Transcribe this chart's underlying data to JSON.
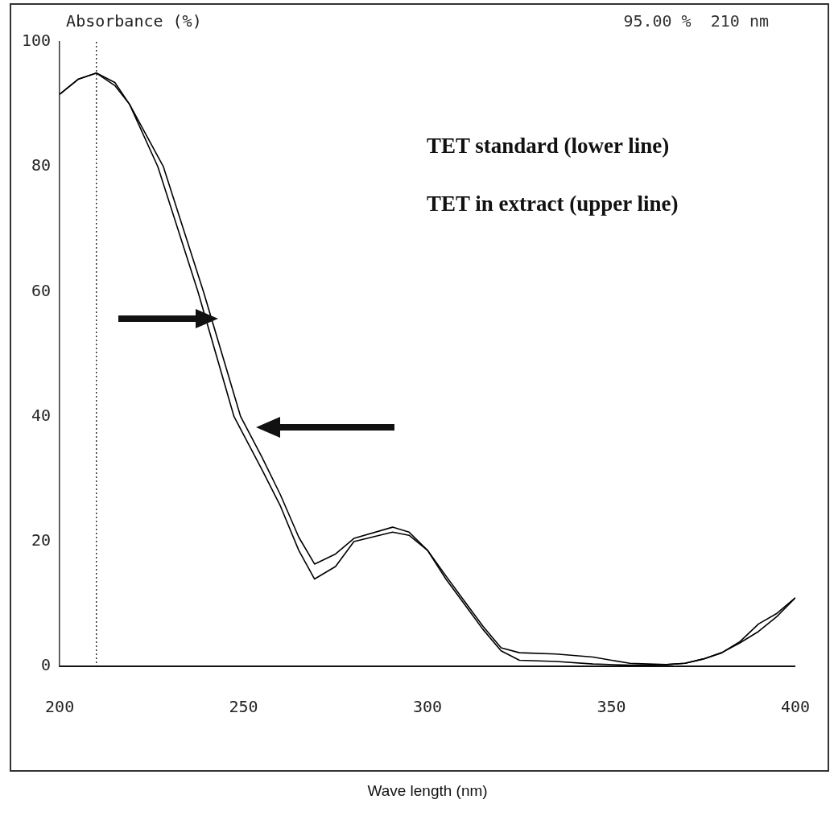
{
  "chart_data": {
    "type": "line",
    "ylabel": "Absorbance (%)",
    "xlabel": "Wave length (nm)",
    "annotations": [
      "95.00 %  210 nm",
      "TET standard (lower line)",
      "TET in extract (upper line)"
    ],
    "series": [
      {
        "color": "#000000",
        "x": [
          200,
          205,
          210,
          215,
          219,
          226.7,
          237.6,
          247.4,
          255,
          260,
          265,
          269.3,
          275,
          280,
          290.5,
          295,
          300,
          305,
          310,
          315,
          320,
          325,
          335,
          345,
          355,
          365,
          370,
          375,
          380,
          385,
          390,
          395,
          400
        ],
        "values": [
          91.6,
          94,
          95,
          93,
          90,
          80,
          60,
          40,
          31.5,
          25.7,
          18.6,
          14,
          16,
          20,
          21.5,
          21,
          18.6,
          14,
          10,
          6,
          2.5,
          1,
          0.8,
          0.4,
          0.2,
          0.3,
          0.5,
          1.2,
          2.2,
          3.8,
          5.6,
          8,
          11
        ]
      },
      {
        "color": "#000000",
        "x": [
          200,
          205,
          210,
          215,
          219,
          228.2,
          239.1,
          249.2,
          255,
          260,
          265,
          269.3,
          275,
          280,
          290.5,
          295,
          300,
          305,
          310,
          315,
          320,
          325,
          335,
          345,
          355,
          365,
          370,
          375,
          380,
          385,
          390,
          395,
          400
        ],
        "values": [
          91.6,
          94,
          95,
          93.5,
          90,
          80,
          60,
          40,
          33.5,
          27.5,
          20.7,
          16.4,
          18,
          20.5,
          22.3,
          21.5,
          18.6,
          14.5,
          10.5,
          6.5,
          3,
          2.2,
          2,
          1.5,
          0.5,
          0.3,
          0.5,
          1.2,
          2.2,
          4,
          6.8,
          8.5,
          11
        ]
      }
    ],
    "xlim": [
      200,
      400
    ],
    "xticks": [
      200,
      250,
      300,
      350,
      400
    ],
    "ylim": [
      0,
      100
    ],
    "yticks": [
      0,
      20,
      40,
      60,
      80,
      100
    ],
    "ref_lines": [
      {
        "axis": "x",
        "value": 210,
        "color": "#000000",
        "line_style": "dotted"
      }
    ],
    "grid": false,
    "legend": false,
    "marker": "none",
    "line_style": "solid"
  }
}
